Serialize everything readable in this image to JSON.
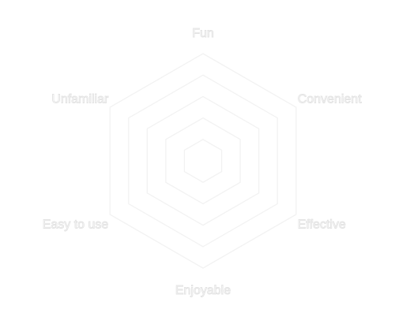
{
  "chart_data": {
    "type": "radar",
    "title": "",
    "categories": [
      "Fun",
      "Convenient",
      "Effective",
      "Enjoyable",
      "Easy to use",
      "Unfamiliar"
    ],
    "levels": 5,
    "series": [],
    "grid": true,
    "colors": {
      "background": "#ffffff",
      "gridline": "#f2f2f2",
      "label_fill": "#ffffff",
      "label_stroke": "#e3e3e3"
    }
  }
}
